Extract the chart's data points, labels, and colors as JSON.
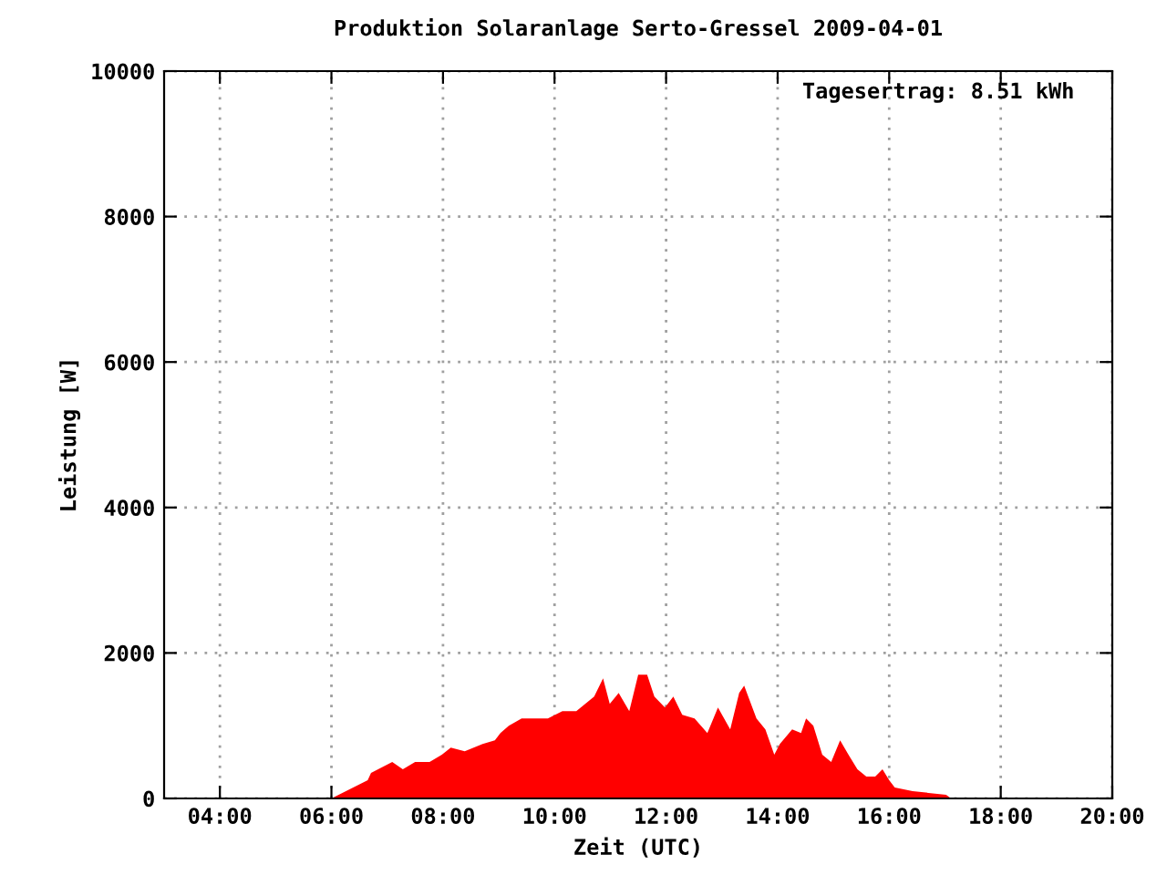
{
  "chart_data": {
    "type": "area",
    "title": "Produktion Solaranlage Serto-Gressel 2009-04-01",
    "xlabel": "Zeit (UTC)",
    "ylabel": "Leistung [W]",
    "annotations": [
      "Tagesertrag: 8.51 kWh"
    ],
    "series": [
      {
        "color": "#ff0000",
        "x": [
          6.0,
          6.65,
          6.71,
          7.09,
          7.28,
          7.5,
          7.76,
          7.98,
          8.14,
          8.39,
          8.71,
          8.93,
          9.03,
          9.18,
          9.41,
          9.6,
          9.88,
          10.14,
          10.39,
          10.71,
          10.87,
          10.99,
          11.15,
          11.34,
          11.5,
          11.66,
          11.79,
          11.98,
          12.13,
          12.29,
          12.51,
          12.74,
          12.93,
          13.15,
          13.31,
          13.4,
          13.62,
          13.78,
          13.94,
          14.04,
          14.26,
          14.42,
          14.51,
          14.64,
          14.8,
          14.96,
          15.12,
          15.27,
          15.43,
          15.59,
          15.75,
          15.88,
          16.0,
          16.1,
          16.42,
          17.02,
          17.11
        ],
        "values": [
          0,
          250,
          350,
          500,
          400,
          500,
          500,
          600,
          700,
          650,
          750,
          800,
          900,
          1000,
          1100,
          1100,
          1100,
          1200,
          1200,
          1400,
          1650,
          1300,
          1450,
          1200,
          1700,
          1700,
          1400,
          1250,
          1400,
          1150,
          1100,
          900,
          1250,
          950,
          1450,
          1550,
          1100,
          950,
          600,
          750,
          950,
          900,
          1100,
          1000,
          600,
          500,
          800,
          600,
          400,
          300,
          300,
          400,
          250,
          150,
          100,
          50,
          0
        ]
      }
    ],
    "xlim": [
      3,
      20
    ],
    "xticks": [
      {
        "value": 4,
        "label": "04:00"
      },
      {
        "value": 6,
        "label": "06:00"
      },
      {
        "value": 8,
        "label": "08:00"
      },
      {
        "value": 10,
        "label": "10:00"
      },
      {
        "value": 12,
        "label": "12:00"
      },
      {
        "value": 14,
        "label": "14:00"
      },
      {
        "value": 16,
        "label": "16:00"
      },
      {
        "value": 18,
        "label": "18:00"
      },
      {
        "value": 20,
        "label": "20:00"
      }
    ],
    "ylim": [
      0,
      10000
    ],
    "yticks": [
      0,
      2000,
      4000,
      6000,
      8000,
      10000
    ],
    "grid": true
  }
}
